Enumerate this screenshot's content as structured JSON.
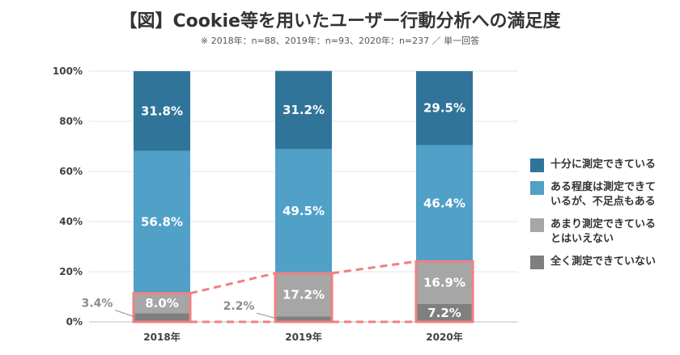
{
  "header": {
    "title": "【図】Cookie等を用いたユーザー行動分析への満足度",
    "subtitle": "※ 2018年：n=88、2019年：n=93、2020年：n=237 ／ 単一回答"
  },
  "chart_data": {
    "type": "bar",
    "stacked": true,
    "percent": true,
    "categories": [
      "2018年",
      "2019年",
      "2020年"
    ],
    "series": [
      {
        "name": "全く測定できていない",
        "values": [
          3.4,
          2.2,
          7.2
        ],
        "color": "#7f7f7f",
        "labels": [
          "3.4%",
          "2.2%",
          "7.2%"
        ]
      },
      {
        "name": "あまり測定できている\nとはいえない",
        "values": [
          8.0,
          17.2,
          16.9
        ],
        "color": "#a6a6a6",
        "labels": [
          "8.0%",
          "17.2%",
          "16.9%"
        ]
      },
      {
        "name": "ある程度は測定できて\nいるが、不足点もある",
        "values": [
          56.8,
          49.5,
          46.4
        ],
        "color": "#50a0c8",
        "labels": [
          "56.8%",
          "49.5%",
          "46.4%"
        ]
      },
      {
        "name": "十分に測定できている",
        "values": [
          31.8,
          31.2,
          29.5
        ],
        "color": "#31749a",
        "labels": [
          "31.8%",
          "31.2%",
          "29.5%"
        ]
      }
    ],
    "y_ticks": [
      "0%",
      "20%",
      "40%",
      "60%",
      "80%",
      "100%"
    ],
    "ylim": [
      0,
      100
    ],
    "highlight_color": "#f08080",
    "legend_position": "right"
  }
}
